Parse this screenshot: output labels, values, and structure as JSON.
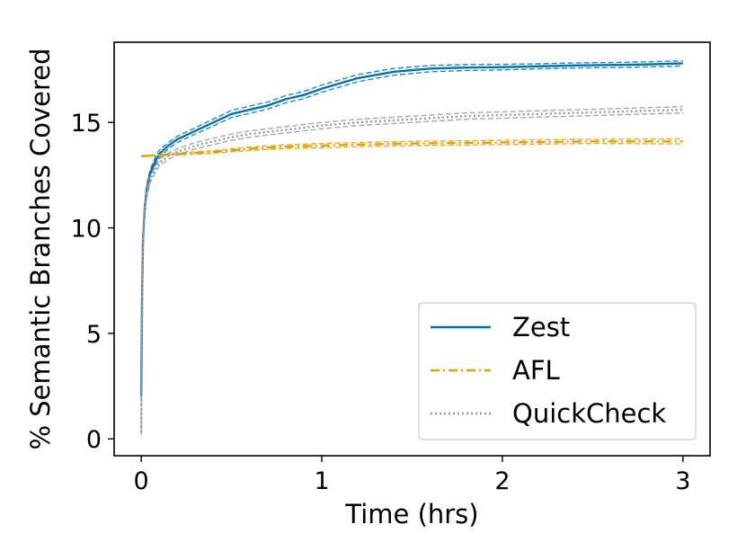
{
  "chart_data": {
    "type": "line",
    "xlabel": "Time (hrs)",
    "ylabel": "% Semantic Branches Covered",
    "xlim": [
      -0.15,
      3.15
    ],
    "ylim": [
      -0.8,
      18.8
    ],
    "xticks": [
      0,
      1,
      2,
      3
    ],
    "yticks": [
      0,
      5,
      10,
      15
    ],
    "grid": false,
    "legend_position": "lower-right",
    "series": [
      {
        "name": "Zest",
        "color": "#0072B2",
        "style": "solid",
        "x": [
          0,
          0.005,
          0.01,
          0.02,
          0.03,
          0.05,
          0.08,
          0.1,
          0.15,
          0.2,
          0.3,
          0.4,
          0.5,
          0.6,
          0.7,
          0.8,
          0.9,
          1.0,
          1.2,
          1.4,
          1.6,
          1.8,
          2.0,
          2.2,
          2.4,
          2.6,
          2.8,
          3.0
        ],
        "y": [
          2.0,
          7.0,
          9.5,
          11.0,
          11.8,
          12.6,
          13.2,
          13.5,
          13.9,
          14.2,
          14.6,
          15.0,
          15.4,
          15.6,
          15.8,
          16.1,
          16.3,
          16.6,
          17.1,
          17.4,
          17.55,
          17.6,
          17.62,
          17.66,
          17.7,
          17.72,
          17.75,
          17.8
        ],
        "band": [
          0.12,
          0.3,
          0.3,
          0.25,
          0.2,
          0.18,
          0.18,
          0.18,
          0.15,
          0.15,
          0.15,
          0.16,
          0.17,
          0.17,
          0.17,
          0.17,
          0.17,
          0.17,
          0.17,
          0.16,
          0.15,
          0.14,
          0.13,
          0.12,
          0.12,
          0.12,
          0.12,
          0.12
        ]
      },
      {
        "name": "AFL",
        "color": "#E69F00",
        "style": "dashdot",
        "x": [
          0,
          0.1,
          0.2,
          0.3,
          0.4,
          0.5,
          0.6,
          0.8,
          1.0,
          1.2,
          1.5,
          2.0,
          2.5,
          3.0
        ],
        "y": [
          13.4,
          13.45,
          13.5,
          13.55,
          13.6,
          13.68,
          13.75,
          13.85,
          13.9,
          13.95,
          14.0,
          14.05,
          14.1,
          14.1
        ],
        "band": [
          0.02,
          0.03,
          0.04,
          0.05,
          0.06,
          0.07,
          0.08,
          0.09,
          0.1,
          0.1,
          0.1,
          0.1,
          0.1,
          0.12
        ]
      },
      {
        "name": "QuickCheck",
        "color": "#999999",
        "style": "dotted",
        "x": [
          0,
          0.005,
          0.01,
          0.02,
          0.03,
          0.05,
          0.08,
          0.1,
          0.15,
          0.2,
          0.3,
          0.4,
          0.5,
          0.6,
          0.8,
          1.0,
          1.2,
          1.4,
          1.6,
          1.8,
          2.0,
          2.2,
          2.4,
          2.6,
          2.8,
          3.0
        ],
        "y": [
          0.3,
          7.0,
          9.5,
          11.0,
          11.6,
          12.3,
          12.8,
          13.1,
          13.4,
          13.6,
          13.9,
          14.1,
          14.3,
          14.45,
          14.65,
          14.85,
          15.0,
          15.1,
          15.2,
          15.3,
          15.35,
          15.4,
          15.45,
          15.5,
          15.55,
          15.6
        ],
        "band": [
          0.1,
          0.25,
          0.25,
          0.2,
          0.18,
          0.15,
          0.15,
          0.15,
          0.15,
          0.15,
          0.15,
          0.15,
          0.15,
          0.15,
          0.15,
          0.15,
          0.15,
          0.15,
          0.15,
          0.15,
          0.15,
          0.15,
          0.15,
          0.15,
          0.15,
          0.15
        ]
      }
    ]
  }
}
